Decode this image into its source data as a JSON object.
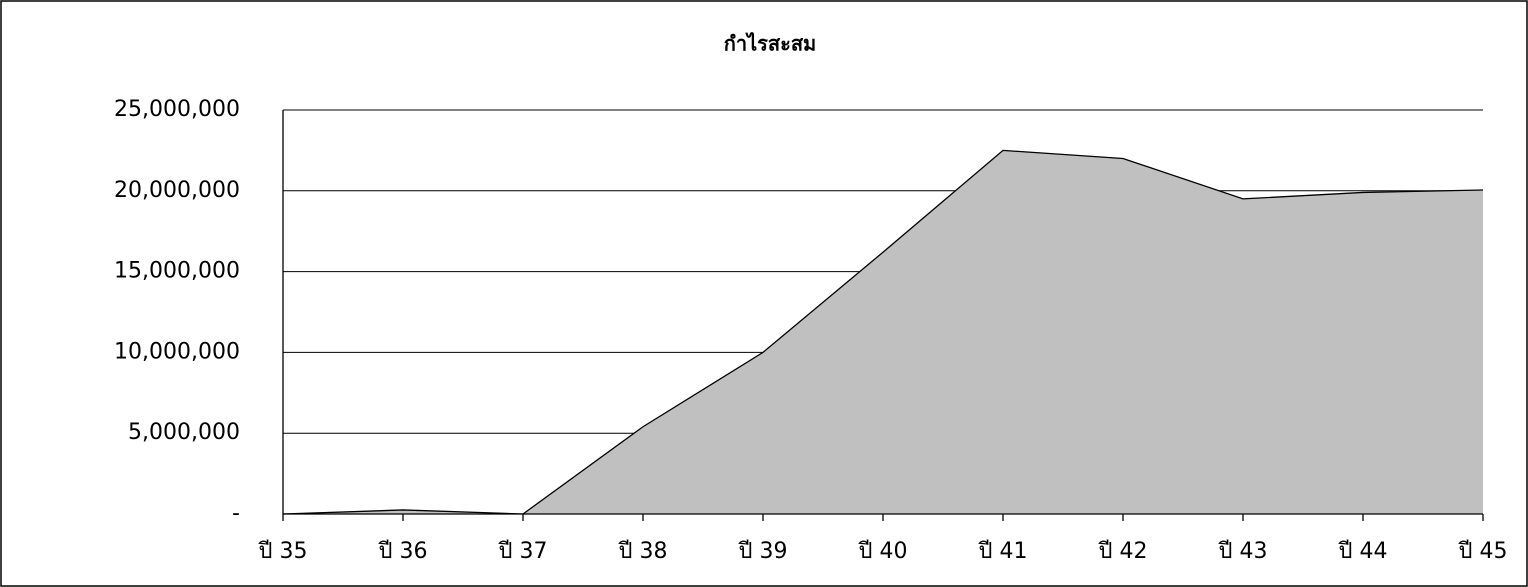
{
  "chart_data": {
    "type": "area",
    "title": "กำไรสะสม",
    "categories": [
      "ปี 35",
      "ปี 36",
      "ปี 37",
      "ปี 38",
      "ปี 39",
      "ปี 40",
      "ปี 41",
      "ปี 42",
      "ปี 43",
      "ปี 44",
      "ปี 45"
    ],
    "values": [
      0,
      250000,
      0,
      5400000,
      10000000,
      16200000,
      22500000,
      22000000,
      19500000,
      19900000,
      20050000
    ],
    "color": "#c0c0c0",
    "ylim": [
      0,
      25000000
    ],
    "yticks": [
      {
        "value": 0,
        "label": "-"
      },
      {
        "value": 5000000,
        "label": "5,000,000"
      },
      {
        "value": 10000000,
        "label": "10,000,000"
      },
      {
        "value": 15000000,
        "label": "15,000,000"
      },
      {
        "value": 20000000,
        "label": "20,000,000"
      },
      {
        "value": 25000000,
        "label": "25,000,000"
      }
    ],
    "grid": true
  }
}
